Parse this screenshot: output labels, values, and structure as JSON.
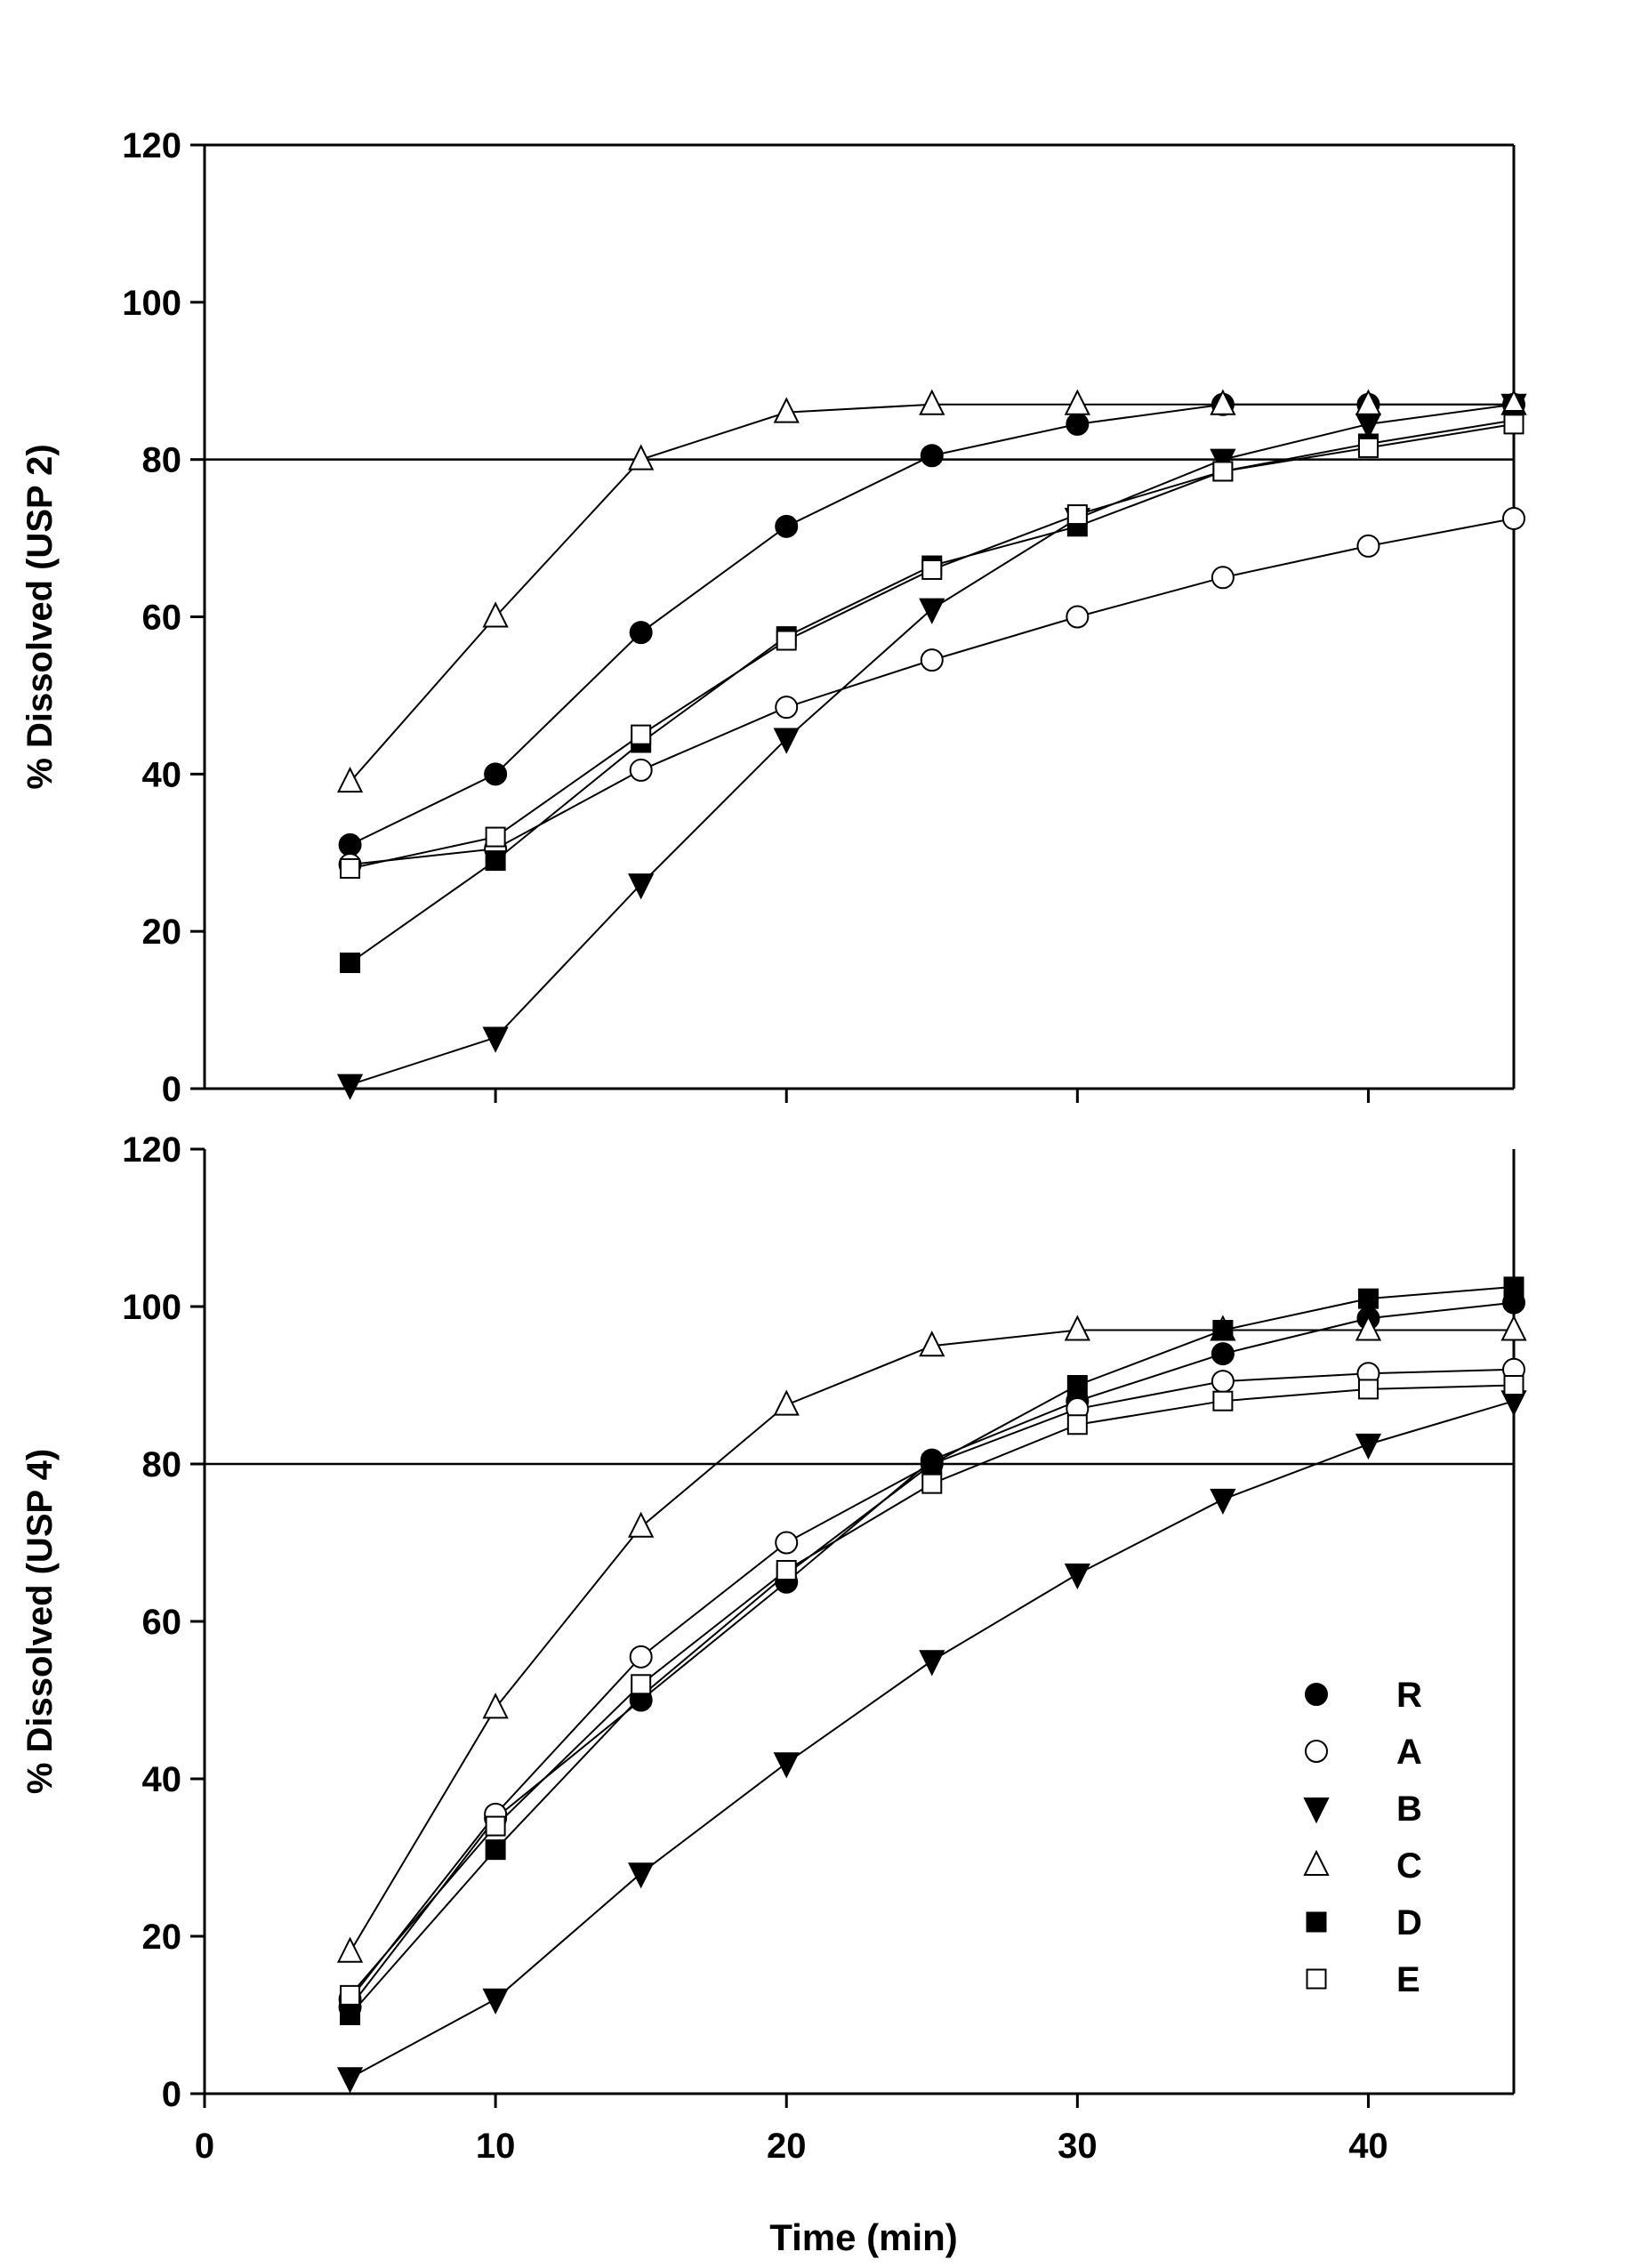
{
  "chart_data": [
    {
      "type": "line",
      "panel": "top",
      "title": "",
      "xlabel": "",
      "ylabel": "% Dissolved (USP 2)",
      "xlim": [
        0,
        45
      ],
      "ylim": [
        0,
        120
      ],
      "yticks": [
        0,
        20,
        40,
        60,
        80,
        100,
        120
      ],
      "xticks": [
        10,
        20,
        30,
        40
      ],
      "xtick_labels_shown": false,
      "reference_line": 80,
      "grid": false,
      "x": [
        5,
        10,
        15,
        20,
        25,
        30,
        35,
        40,
        45
      ],
      "series": [
        {
          "name": "R",
          "marker": "filled-circle",
          "values": [
            31,
            40,
            58,
            71.5,
            80.5,
            84.5,
            87,
            87,
            87
          ]
        },
        {
          "name": "A",
          "marker": "open-circle",
          "values": [
            28.5,
            30.5,
            40.5,
            48.5,
            54.5,
            60,
            65,
            69,
            72.5
          ]
        },
        {
          "name": "B",
          "marker": "filled-triangle-down",
          "values": [
            0.5,
            6.5,
            26,
            44.5,
            61,
            72.5,
            80,
            84.5,
            87
          ]
        },
        {
          "name": "C",
          "marker": "open-triangle-up",
          "values": [
            39,
            60,
            80,
            86,
            87,
            87,
            87,
            87,
            87
          ]
        },
        {
          "name": "D",
          "marker": "filled-square",
          "values": [
            16,
            29,
            44,
            57.5,
            66.5,
            71.5,
            78.5,
            82,
            85
          ]
        },
        {
          "name": "E",
          "marker": "open-square",
          "values": [
            28,
            32,
            45,
            57,
            66,
            73,
            78.5,
            81.5,
            84.5
          ]
        }
      ]
    },
    {
      "type": "line",
      "panel": "bottom",
      "title": "",
      "xlabel": "Time (min)",
      "ylabel": "% Dissolved (USP 4)",
      "xlim": [
        0,
        45
      ],
      "ylim": [
        0,
        120
      ],
      "yticks": [
        0,
        20,
        40,
        60,
        80,
        100,
        120
      ],
      "xticks": [
        0,
        10,
        20,
        30,
        40
      ],
      "xtick_labels_shown": true,
      "reference_line": 80,
      "grid": false,
      "legend_position": "bottom-right",
      "x": [
        5,
        10,
        15,
        20,
        25,
        30,
        35,
        40,
        45
      ],
      "series": [
        {
          "name": "R",
          "marker": "filled-circle",
          "values": [
            11,
            35,
            50,
            65,
            80.5,
            88,
            94,
            98.5,
            100.5
          ]
        },
        {
          "name": "A",
          "marker": "open-circle",
          "values": [
            12,
            35.5,
            55.5,
            70,
            80,
            87,
            90.5,
            91.5,
            92
          ]
        },
        {
          "name": "B",
          "marker": "filled-triangle-down",
          "values": [
            2,
            12,
            28,
            42,
            55,
            66,
            75.5,
            82.5,
            88
          ]
        },
        {
          "name": "C",
          "marker": "open-triangle-up",
          "values": [
            18,
            49,
            72,
            87.5,
            95,
            97,
            97,
            97,
            97
          ]
        },
        {
          "name": "D",
          "marker": "filled-square",
          "values": [
            10,
            31,
            50.5,
            66,
            80,
            90,
            97,
            101,
            102.5
          ]
        },
        {
          "name": "E",
          "marker": "open-square",
          "values": [
            12.5,
            34,
            52,
            66.5,
            77.5,
            85,
            88,
            89.5,
            90
          ]
        }
      ]
    }
  ]
}
